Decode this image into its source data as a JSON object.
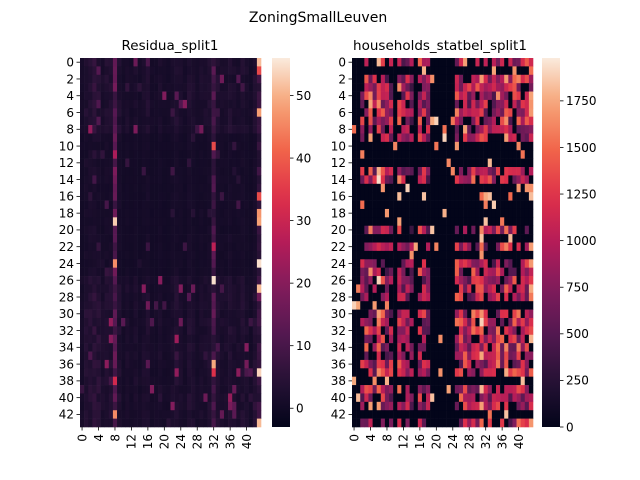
{
  "figure": {
    "suptitle": "ZoningSmallLeuven"
  },
  "chart_data": [
    {
      "type": "heatmap",
      "title": "Residua_split1",
      "rows": 44,
      "cols": 44,
      "x_tick_labels": [
        "0",
        "4",
        "8",
        "12",
        "16",
        "20",
        "24",
        "28",
        "32",
        "36",
        "40"
      ],
      "y_tick_labels": [
        "0",
        "2",
        "4",
        "6",
        "8",
        "10",
        "12",
        "14",
        "16",
        "18",
        "20",
        "22",
        "24",
        "26",
        "28",
        "30",
        "32",
        "34",
        "36",
        "38",
        "40",
        "42"
      ],
      "colorbar": {
        "min": -3,
        "max": 56,
        "ticks": [
          0,
          10,
          20,
          30,
          40,
          50
        ],
        "tick_labels": [
          "0",
          "10",
          "20",
          "30",
          "40",
          "50"
        ]
      },
      "colormap": "rocket",
      "bright_columns": [
        8,
        32,
        43
      ],
      "column_means": [
        1,
        3,
        4,
        5,
        4,
        2,
        3,
        3,
        12,
        3,
        1,
        2,
        1,
        2,
        1,
        2,
        3,
        1,
        1,
        2,
        1,
        1,
        2,
        3,
        2,
        1,
        3,
        2,
        1,
        2,
        2,
        3,
        9,
        3,
        2,
        2,
        3,
        2,
        2,
        3,
        2,
        1,
        3,
        6
      ]
    },
    {
      "type": "heatmap",
      "title": "households_statbel_split1",
      "rows": 44,
      "cols": 44,
      "x_tick_labels": [
        "0",
        "4",
        "8",
        "12",
        "16",
        "20",
        "24",
        "28",
        "32",
        "36",
        "40"
      ],
      "y_tick_labels": [
        "0",
        "2",
        "4",
        "6",
        "8",
        "10",
        "12",
        "14",
        "16",
        "18",
        "20",
        "22",
        "24",
        "26",
        "28",
        "30",
        "32",
        "34",
        "36",
        "38",
        "40",
        "42"
      ],
      "colorbar": {
        "min": 0,
        "max": 1980,
        "ticks": [
          0,
          250,
          500,
          750,
          1000,
          1250,
          1500,
          1750
        ],
        "tick_labels": [
          "0",
          "250",
          "500",
          "750",
          "1000",
          "1250",
          "1500",
          "1750"
        ]
      },
      "colormap": "rocket",
      "zero_rows": [
        1,
        10,
        11,
        12,
        15,
        16,
        17,
        18,
        19,
        21,
        23,
        29,
        38,
        42
      ],
      "zero_cols": [
        0,
        1,
        10,
        15,
        19,
        20,
        21,
        22,
        23,
        24
      ],
      "column_means": [
        0,
        0,
        900,
        1000,
        1200,
        900,
        1300,
        1000,
        800,
        900,
        0,
        1100,
        800,
        900,
        700,
        0,
        1000,
        900,
        800,
        0,
        0,
        0,
        0,
        0,
        0,
        1100,
        1000,
        1200,
        900,
        1100,
        1000,
        1300,
        900,
        1000,
        800,
        1100,
        1000,
        1200,
        900,
        1000,
        1100,
        900,
        1000,
        1200
      ]
    }
  ]
}
